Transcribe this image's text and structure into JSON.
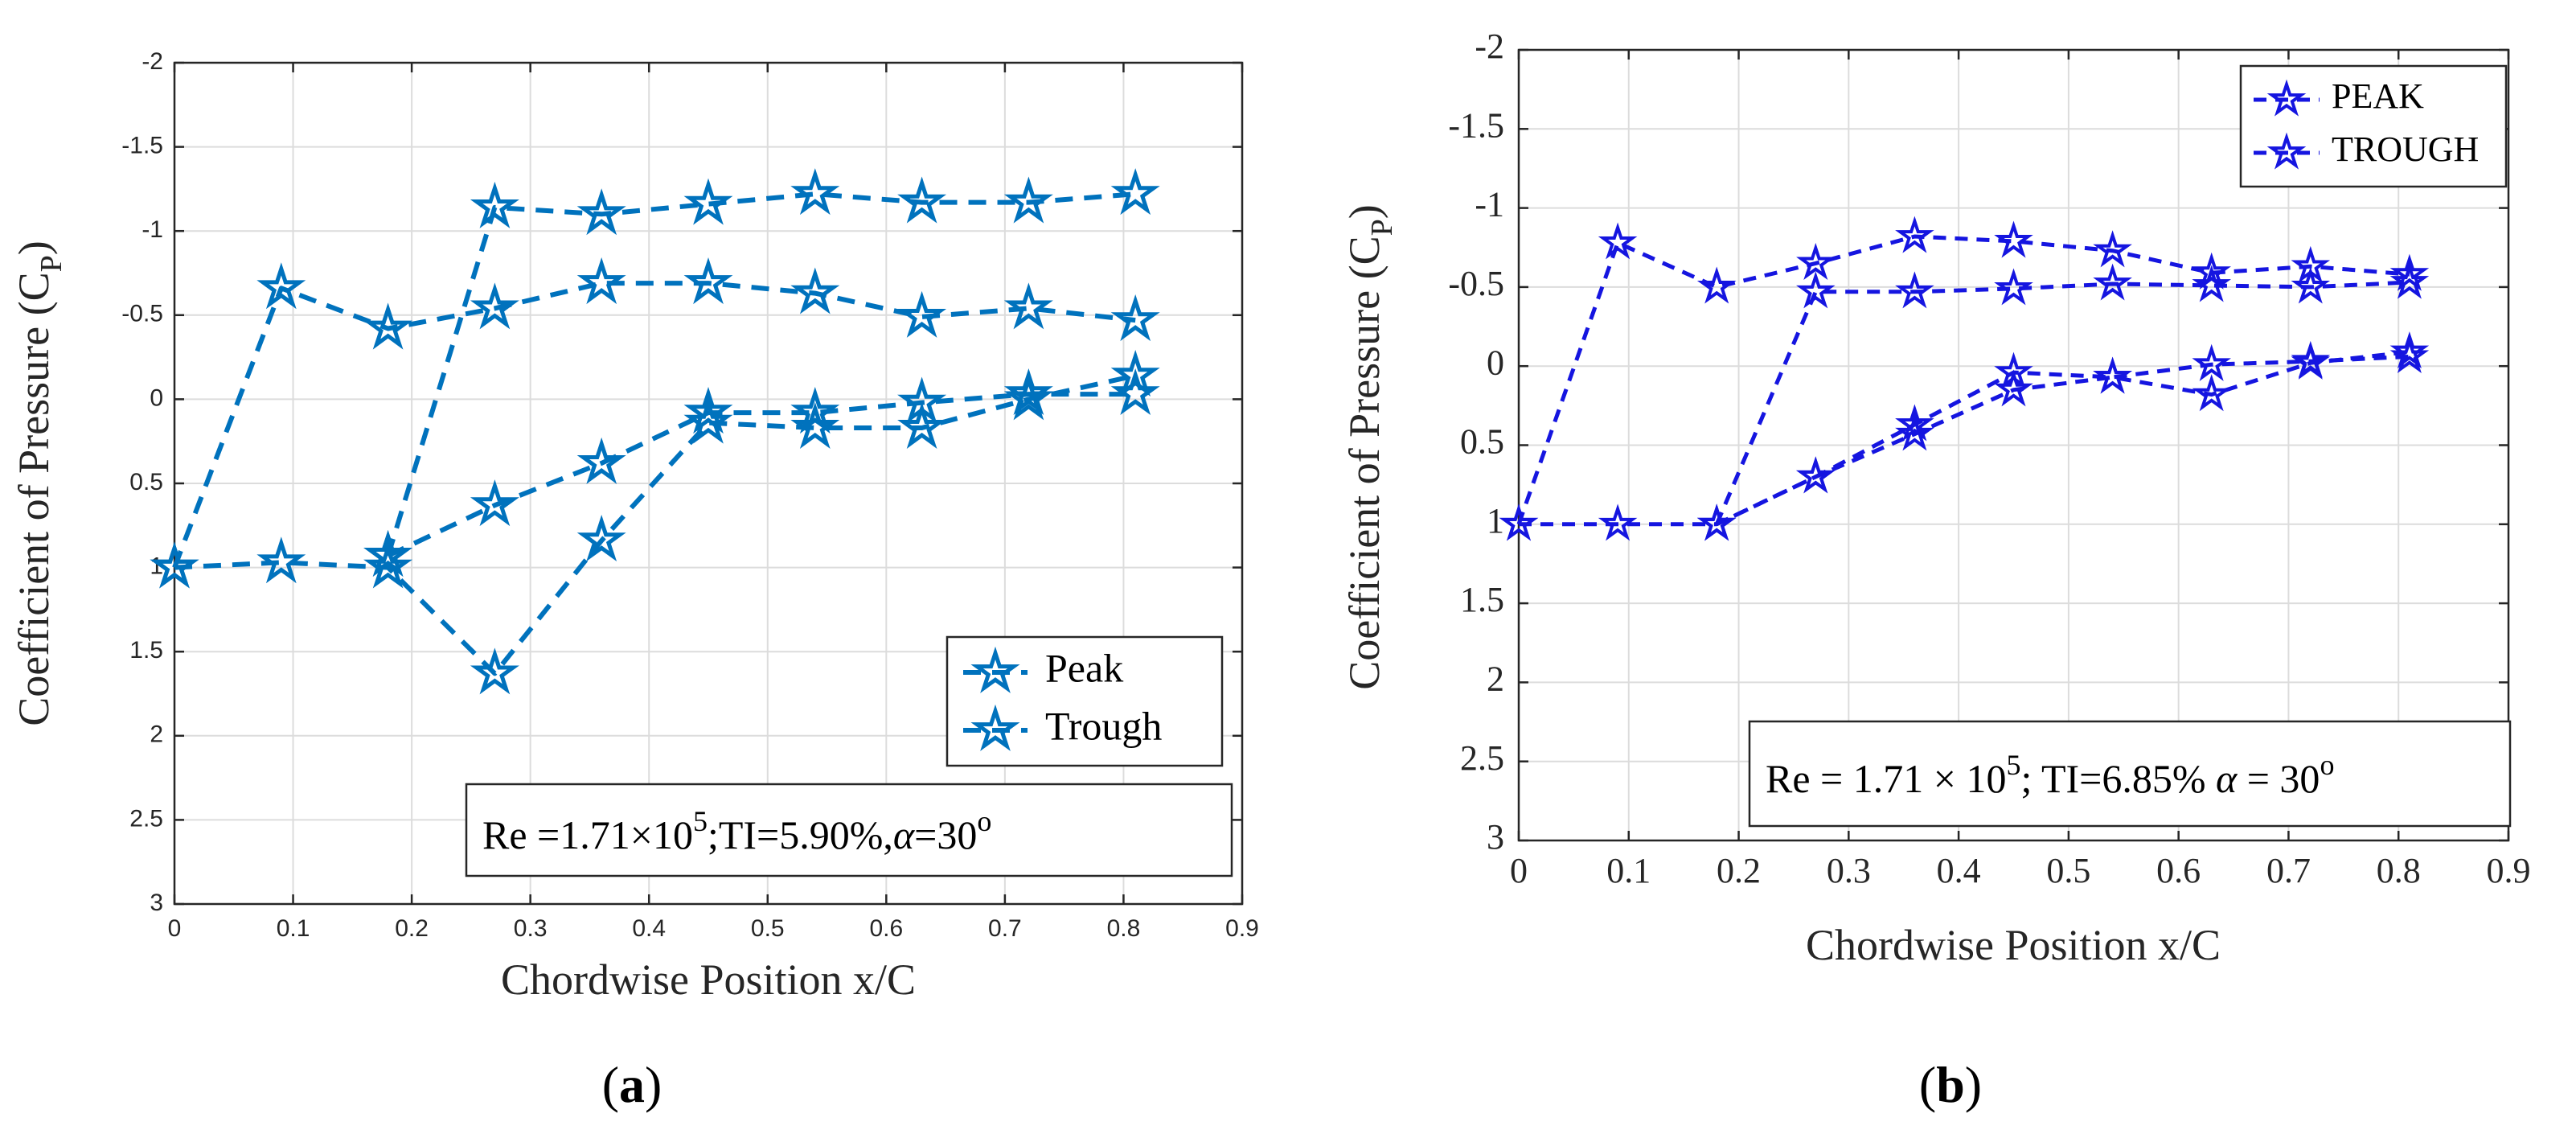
{
  "chart_data": [
    {
      "type": "line",
      "panel_label": "(a)",
      "xlabel": "Chordwise Position x/C",
      "ylabel": "Coefficient of Pressure (C",
      "ylabel_sub": "P",
      "ylabel_close": ")",
      "xlim": [
        0,
        0.9
      ],
      "ylim": [
        -2,
        3
      ],
      "y_reversed": true,
      "grid": true,
      "xticks": [
        "0",
        "0.1",
        "0.2",
        "0.3",
        "0.4",
        "0.5",
        "0.6",
        "0.7",
        "0.8",
        "0.9"
      ],
      "yticks": [
        "-2",
        "-1.5",
        "-1",
        "-0.5",
        "0",
        "0.5",
        "1",
        "1.5",
        "2",
        "2.5",
        "3"
      ],
      "legend_position": "lower-right",
      "annotation": {
        "base": "Re =1.71×10",
        "sup": "5",
        "rest": ";TI=5.90%,",
        "alpha": "α",
        "alpha_rest": "=30",
        "deg": "o"
      },
      "color": "#0072BD",
      "series": [
        {
          "name": "Peak",
          "segments": [
            {
              "x": [
                0,
                0.09,
                0.18,
                0.27,
                0.36,
                0.45,
                0.54,
                0.63,
                0.72,
                0.81
              ],
              "y": [
                1.0,
                -0.66,
                -0.42,
                -0.54,
                -0.69,
                -0.69,
                -0.63,
                -0.49,
                -0.54,
                -0.47
              ]
            },
            {
              "x": [
                0,
                0.09,
                0.18,
                0.27,
                0.36,
                0.45,
                0.54,
                0.63,
                0.72,
                0.81
              ],
              "y": [
                1.0,
                0.97,
                1.0,
                1.63,
                0.84,
                0.14,
                0.17,
                0.17,
                0.0,
                -0.14
              ]
            }
          ]
        },
        {
          "name": "Trough",
          "segments": [
            {
              "x": [
                0.18,
                0.27,
                0.36,
                0.45,
                0.54,
                0.63,
                0.72,
                0.81
              ],
              "y": [
                0.93,
                -1.14,
                -1.1,
                -1.16,
                -1.22,
                -1.17,
                -1.17,
                -1.22
              ]
            },
            {
              "x": [
                0.18,
                0.27,
                0.36,
                0.45,
                0.54,
                0.63,
                0.72,
                0.81
              ],
              "y": [
                0.93,
                0.63,
                0.38,
                0.08,
                0.08,
                0.02,
                -0.03,
                -0.03
              ]
            }
          ]
        }
      ]
    },
    {
      "type": "line",
      "panel_label": "(b)",
      "xlabel": "Chordwise Position x/C",
      "ylabel": "Coefficient of Pressure (C",
      "ylabel_sub": "P",
      "ylabel_close": ")",
      "xlim": [
        0,
        0.9
      ],
      "ylim": [
        -2,
        3
      ],
      "y_reversed": true,
      "grid": true,
      "xticks": [
        "0",
        "0.1",
        "0.2",
        "0.3",
        "0.4",
        "0.5",
        "0.6",
        "0.7",
        "0.8",
        "0.9"
      ],
      "yticks": [
        "-2",
        "-1.5",
        "-1",
        "-0.5",
        "0",
        "0.5",
        "1",
        "1.5",
        "2",
        "2.5",
        "3"
      ],
      "legend_position": "top-right",
      "annotation": {
        "base": "Re = 1.71 × 10",
        "sup": "5",
        "rest": "; TI=6.85%  ",
        "alpha": "α",
        "alpha_rest": " = 30",
        "deg": "o"
      },
      "color": "#1515E0",
      "series": [
        {
          "name": "PEAK",
          "segments": [
            {
              "x": [
                0,
                0.09,
                0.18,
                0.27,
                0.36,
                0.45,
                0.54,
                0.63,
                0.72,
                0.81
              ],
              "y": [
                1.0,
                -0.78,
                -0.5,
                -0.65,
                -0.82,
                -0.79,
                -0.73,
                -0.59,
                -0.63,
                -0.58
              ]
            },
            {
              "x": [
                0,
                0.09,
                0.18,
                0.27,
                0.36,
                0.45,
                0.54,
                0.63,
                0.72,
                0.81
              ],
              "y": [
                1.0,
                1.0,
                1.0,
                0.7,
                0.43,
                0.15,
                0.07,
                0.18,
                -0.02,
                -0.09
              ]
            }
          ]
        },
        {
          "name": "TROUGH",
          "segments": [
            {
              "x": [
                0.18,
                0.27,
                0.36,
                0.45,
                0.54,
                0.63,
                0.72,
                0.81
              ],
              "y": [
                1.0,
                -0.47,
                -0.47,
                -0.49,
                -0.52,
                -0.51,
                -0.5,
                -0.53
              ]
            },
            {
              "x": [
                0.18,
                0.27,
                0.36,
                0.45,
                0.54,
                0.63,
                0.72,
                0.81
              ],
              "y": [
                1.0,
                0.7,
                0.37,
                0.04,
                0.07,
                -0.01,
                -0.03,
                -0.06
              ]
            }
          ]
        }
      ]
    }
  ]
}
